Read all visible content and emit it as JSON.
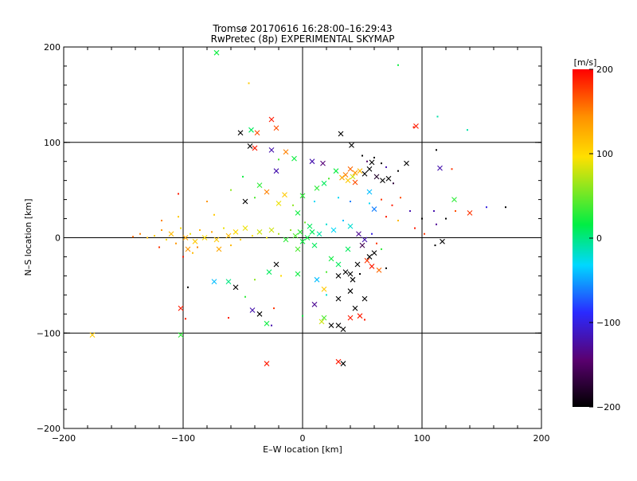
{
  "chart_data": {
    "type": "scatter",
    "title": "Tromsø 20170616 16:28:00–16:29:43",
    "subtitle": "RwPretec (8p) EXPERIMENTAL SKYMAP",
    "xlabel": "E–W location [km]",
    "ylabel": "N–S location [km]",
    "xlim": [
      -200,
      200
    ],
    "ylim": [
      -200,
      200
    ],
    "xticks": [
      -200,
      -100,
      0,
      100,
      200
    ],
    "yticks": [
      -200,
      -100,
      0,
      100,
      200
    ],
    "xtick_labels": [
      "−200",
      "−100",
      "0",
      "100",
      "200"
    ],
    "ytick_labels": [
      "−200",
      "−100",
      "0",
      "100",
      "200"
    ],
    "grid": true,
    "colorbar": {
      "label": "[m/s]",
      "range": [
        -200,
        200
      ],
      "ticks": [
        200,
        100,
        0,
        -100,
        -200
      ],
      "tick_labels": [
        "200",
        "100",
        "0",
        "−100",
        "−200"
      ],
      "colors": [
        "#000000",
        "#5a0070",
        "#2a2aff",
        "#00d8ff",
        "#00ee44",
        "#ffe000",
        "#ff9000",
        "#ff0000"
      ]
    },
    "markers": {
      "small": "dot",
      "large": "x"
    },
    "points": [
      {
        "x": -72,
        "y": 194,
        "v": 20,
        "m": "x"
      },
      {
        "x": -45,
        "y": 162,
        "v": 110,
        "m": "dot"
      },
      {
        "x": 80,
        "y": 181,
        "v": 20,
        "m": "dot"
      },
      {
        "x": 113,
        "y": 127,
        "v": -10,
        "m": "dot"
      },
      {
        "x": 138,
        "y": 113,
        "v": -10,
        "m": "dot"
      },
      {
        "x": -26,
        "y": 124,
        "v": 190,
        "m": "x"
      },
      {
        "x": -22,
        "y": 115,
        "v": 170,
        "m": "x"
      },
      {
        "x": -52,
        "y": 110,
        "v": -200,
        "m": "x"
      },
      {
        "x": -43,
        "y": 113,
        "v": 10,
        "m": "x"
      },
      {
        "x": -38,
        "y": 110,
        "v": 170,
        "m": "x"
      },
      {
        "x": 32,
        "y": 109,
        "v": -200,
        "m": "x"
      },
      {
        "x": 95,
        "y": 117,
        "v": 190,
        "m": "x"
      },
      {
        "x": 93,
        "y": 116,
        "v": 190,
        "m": "dot"
      },
      {
        "x": -44,
        "y": 96,
        "v": -200,
        "m": "x"
      },
      {
        "x": -40,
        "y": 94,
        "v": 190,
        "m": "x"
      },
      {
        "x": -26,
        "y": 92,
        "v": -120,
        "m": "x"
      },
      {
        "x": -14,
        "y": 90,
        "v": 150,
        "m": "x"
      },
      {
        "x": 41,
        "y": 97,
        "v": -200,
        "m": "x"
      },
      {
        "x": 112,
        "y": 92,
        "v": -200,
        "m": "dot"
      },
      {
        "x": -7,
        "y": 83,
        "v": 20,
        "m": "x"
      },
      {
        "x": 8,
        "y": 80,
        "v": -120,
        "m": "x"
      },
      {
        "x": 17,
        "y": 78,
        "v": -140,
        "m": "x"
      },
      {
        "x": 58,
        "y": 79,
        "v": -200,
        "m": "x"
      },
      {
        "x": 87,
        "y": 78,
        "v": -200,
        "m": "x"
      },
      {
        "x": -22,
        "y": 70,
        "v": -120,
        "m": "x"
      },
      {
        "x": -20,
        "y": 82,
        "v": 40,
        "m": "dot"
      },
      {
        "x": 115,
        "y": 73,
        "v": -120,
        "m": "x"
      },
      {
        "x": 125,
        "y": 72,
        "v": 180,
        "m": "dot"
      },
      {
        "x": 40,
        "y": 72,
        "v": 160,
        "m": "x"
      },
      {
        "x": 44,
        "y": 68,
        "v": 140,
        "m": "x"
      },
      {
        "x": 36,
        "y": 66,
        "v": 150,
        "m": "x"
      },
      {
        "x": 48,
        "y": 70,
        "v": 120,
        "m": "x"
      },
      {
        "x": 38,
        "y": 60,
        "v": 110,
        "m": "x"
      },
      {
        "x": 33,
        "y": 63,
        "v": 130,
        "m": "x"
      },
      {
        "x": 44,
        "y": 58,
        "v": 170,
        "m": "x"
      },
      {
        "x": 42,
        "y": 64,
        "v": 80,
        "m": "x"
      },
      {
        "x": 52,
        "y": 67,
        "v": -200,
        "m": "x"
      },
      {
        "x": 56,
        "y": 72,
        "v": -200,
        "m": "x"
      },
      {
        "x": 62,
        "y": 64,
        "v": -180,
        "m": "x"
      },
      {
        "x": 67,
        "y": 60,
        "v": -200,
        "m": "x"
      },
      {
        "x": 72,
        "y": 62,
        "v": -200,
        "m": "x"
      },
      {
        "x": 76,
        "y": 57,
        "v": -170,
        "m": "dot"
      },
      {
        "x": 50,
        "y": 86,
        "v": -200,
        "m": "dot"
      },
      {
        "x": 54,
        "y": 80,
        "v": -150,
        "m": "dot"
      },
      {
        "x": 60,
        "y": 84,
        "v": -200,
        "m": "dot"
      },
      {
        "x": 66,
        "y": 78,
        "v": -200,
        "m": "dot"
      },
      {
        "x": 70,
        "y": 74,
        "v": -120,
        "m": "dot"
      },
      {
        "x": 80,
        "y": 70,
        "v": -200,
        "m": "dot"
      },
      {
        "x": 28,
        "y": 70,
        "v": 20,
        "m": "x"
      },
      {
        "x": 22,
        "y": 62,
        "v": 40,
        "m": "dot"
      },
      {
        "x": 18,
        "y": 57,
        "v": 10,
        "m": "x"
      },
      {
        "x": 12,
        "y": 52,
        "v": 30,
        "m": "x"
      },
      {
        "x": -50,
        "y": 64,
        "v": 20,
        "m": "dot"
      },
      {
        "x": -36,
        "y": 55,
        "v": 30,
        "m": "x"
      },
      {
        "x": -30,
        "y": 48,
        "v": 150,
        "m": "x"
      },
      {
        "x": -40,
        "y": 42,
        "v": 40,
        "m": "dot"
      },
      {
        "x": -60,
        "y": 50,
        "v": 60,
        "m": "dot"
      },
      {
        "x": -15,
        "y": 45,
        "v": 110,
        "m": "x"
      },
      {
        "x": 0,
        "y": 44,
        "v": 30,
        "m": "x"
      },
      {
        "x": -48,
        "y": 38,
        "v": -200,
        "m": "x"
      },
      {
        "x": -20,
        "y": 36,
        "v": 90,
        "m": "x"
      },
      {
        "x": -8,
        "y": 34,
        "v": 60,
        "m": "dot"
      },
      {
        "x": 30,
        "y": 42,
        "v": -30,
        "m": "dot"
      },
      {
        "x": 56,
        "y": 36,
        "v": -30,
        "m": "dot"
      },
      {
        "x": 60,
        "y": 30,
        "v": -60,
        "m": "x"
      },
      {
        "x": 66,
        "y": 40,
        "v": 180,
        "m": "dot"
      },
      {
        "x": 75,
        "y": 34,
        "v": 190,
        "m": "dot"
      },
      {
        "x": 82,
        "y": 42,
        "v": 170,
        "m": "dot"
      },
      {
        "x": 90,
        "y": 28,
        "v": -120,
        "m": "dot"
      },
      {
        "x": 127,
        "y": 40,
        "v": 30,
        "m": "x"
      },
      {
        "x": 128,
        "y": 28,
        "v": 170,
        "m": "dot"
      },
      {
        "x": 140,
        "y": 26,
        "v": 180,
        "m": "x"
      },
      {
        "x": 154,
        "y": 32,
        "v": -100,
        "m": "dot"
      },
      {
        "x": 170,
        "y": 32,
        "v": -200,
        "m": "dot"
      },
      {
        "x": 110,
        "y": 28,
        "v": -120,
        "m": "dot"
      },
      {
        "x": 120,
        "y": 20,
        "v": -200,
        "m": "dot"
      },
      {
        "x": 112,
        "y": 14,
        "v": -130,
        "m": "dot"
      },
      {
        "x": 100,
        "y": 20,
        "v": -200,
        "m": "dot"
      },
      {
        "x": 94,
        "y": 10,
        "v": 190,
        "m": "dot"
      },
      {
        "x": 80,
        "y": 18,
        "v": 120,
        "m": "dot"
      },
      {
        "x": 70,
        "y": 22,
        "v": 190,
        "m": "dot"
      },
      {
        "x": 102,
        "y": 4,
        "v": 180,
        "m": "dot"
      },
      {
        "x": 117,
        "y": -4,
        "v": -200,
        "m": "x"
      },
      {
        "x": 111,
        "y": -8,
        "v": -200,
        "m": "dot"
      },
      {
        "x": 47,
        "y": 4,
        "v": -130,
        "m": "x"
      },
      {
        "x": 52,
        "y": -2,
        "v": -120,
        "m": "x"
      },
      {
        "x": 50,
        "y": -8,
        "v": -160,
        "m": "x"
      },
      {
        "x": 58,
        "y": 4,
        "v": -100,
        "m": "dot"
      },
      {
        "x": 62,
        "y": -6,
        "v": 180,
        "m": "dot"
      },
      {
        "x": 40,
        "y": 12,
        "v": -20,
        "m": "x"
      },
      {
        "x": 34,
        "y": 18,
        "v": -40,
        "m": "dot"
      },
      {
        "x": 26,
        "y": 8,
        "v": -30,
        "m": "x"
      },
      {
        "x": 20,
        "y": 14,
        "v": -20,
        "m": "dot"
      },
      {
        "x": 14,
        "y": 4,
        "v": -10,
        "m": "x"
      },
      {
        "x": 8,
        "y": 6,
        "v": 10,
        "m": "x"
      },
      {
        "x": 4,
        "y": 0,
        "v": 20,
        "m": "x"
      },
      {
        "x": -2,
        "y": 6,
        "v": 30,
        "m": "x"
      },
      {
        "x": 0,
        "y": -4,
        "v": 20,
        "m": "x"
      },
      {
        "x": -6,
        "y": 2,
        "v": 40,
        "m": "x"
      },
      {
        "x": -10,
        "y": 8,
        "v": 60,
        "m": "dot"
      },
      {
        "x": -14,
        "y": -2,
        "v": 30,
        "m": "x"
      },
      {
        "x": 6,
        "y": 12,
        "v": 10,
        "m": "x"
      },
      {
        "x": 2,
        "y": 16,
        "v": 50,
        "m": "dot"
      },
      {
        "x": 10,
        "y": -8,
        "v": 10,
        "m": "x"
      },
      {
        "x": -4,
        "y": -12,
        "v": 40,
        "m": "x"
      },
      {
        "x": -20,
        "y": 4,
        "v": 70,
        "m": "dot"
      },
      {
        "x": -26,
        "y": 8,
        "v": 80,
        "m": "x"
      },
      {
        "x": -30,
        "y": 0,
        "v": 90,
        "m": "dot"
      },
      {
        "x": -36,
        "y": 6,
        "v": 80,
        "m": "x"
      },
      {
        "x": -42,
        "y": 2,
        "v": 100,
        "m": "dot"
      },
      {
        "x": -48,
        "y": 10,
        "v": 90,
        "m": "x"
      },
      {
        "x": -52,
        "y": -2,
        "v": 110,
        "m": "dot"
      },
      {
        "x": -56,
        "y": 6,
        "v": 100,
        "m": "x"
      },
      {
        "x": -62,
        "y": 2,
        "v": 120,
        "m": "x"
      },
      {
        "x": -66,
        "y": 10,
        "v": 90,
        "m": "dot"
      },
      {
        "x": -72,
        "y": -2,
        "v": 110,
        "m": "x"
      },
      {
        "x": -76,
        "y": 6,
        "v": 130,
        "m": "dot"
      },
      {
        "x": -82,
        "y": 0,
        "v": 100,
        "m": "x"
      },
      {
        "x": -86,
        "y": 8,
        "v": 120,
        "m": "dot"
      },
      {
        "x": -90,
        "y": -4,
        "v": 110,
        "m": "x"
      },
      {
        "x": -94,
        "y": 4,
        "v": 90,
        "m": "dot"
      },
      {
        "x": -98,
        "y": 0,
        "v": 130,
        "m": "x"
      },
      {
        "x": -102,
        "y": 10,
        "v": 100,
        "m": "dot"
      },
      {
        "x": -106,
        "y": -6,
        "v": 140,
        "m": "dot"
      },
      {
        "x": -110,
        "y": 4,
        "v": 120,
        "m": "x"
      },
      {
        "x": -114,
        "y": -2,
        "v": 100,
        "m": "dot"
      },
      {
        "x": -118,
        "y": 8,
        "v": 140,
        "m": "dot"
      },
      {
        "x": -124,
        "y": 2,
        "v": 110,
        "m": "dot"
      },
      {
        "x": -130,
        "y": 0,
        "v": 120,
        "m": "dot"
      },
      {
        "x": -136,
        "y": 4,
        "v": 150,
        "m": "dot"
      },
      {
        "x": -142,
        "y": 1,
        "v": 160,
        "m": "dot"
      },
      {
        "x": -118,
        "y": 18,
        "v": 150,
        "m": "dot"
      },
      {
        "x": -104,
        "y": 22,
        "v": 110,
        "m": "dot"
      },
      {
        "x": -96,
        "y": -12,
        "v": 140,
        "m": "x"
      },
      {
        "x": -88,
        "y": -10,
        "v": 150,
        "m": "dot"
      },
      {
        "x": -100,
        "y": -20,
        "v": 190,
        "m": "dot"
      },
      {
        "x": -92,
        "y": -16,
        "v": 120,
        "m": "dot"
      },
      {
        "x": -70,
        "y": -12,
        "v": 130,
        "m": "x"
      },
      {
        "x": -60,
        "y": -8,
        "v": 120,
        "m": "dot"
      },
      {
        "x": -120,
        "y": -10,
        "v": 180,
        "m": "dot"
      },
      {
        "x": -104,
        "y": 46,
        "v": 190,
        "m": "dot"
      },
      {
        "x": -80,
        "y": 38,
        "v": 140,
        "m": "dot"
      },
      {
        "x": -74,
        "y": 24,
        "v": 110,
        "m": "dot"
      },
      {
        "x": 24,
        "y": -22,
        "v": 20,
        "m": "x"
      },
      {
        "x": 30,
        "y": -28,
        "v": 10,
        "m": "x"
      },
      {
        "x": 20,
        "y": -36,
        "v": 40,
        "m": "dot"
      },
      {
        "x": 12,
        "y": -44,
        "v": -40,
        "m": "x"
      },
      {
        "x": 18,
        "y": -54,
        "v": 110,
        "m": "x"
      },
      {
        "x": -4,
        "y": -38,
        "v": 20,
        "m": "x"
      },
      {
        "x": -22,
        "y": -28,
        "v": -200,
        "m": "x"
      },
      {
        "x": -18,
        "y": -40,
        "v": 100,
        "m": "dot"
      },
      {
        "x": -28,
        "y": -36,
        "v": 10,
        "m": "x"
      },
      {
        "x": -40,
        "y": -44,
        "v": 60,
        "m": "dot"
      },
      {
        "x": -62,
        "y": -46,
        "v": 0,
        "m": "x"
      },
      {
        "x": -74,
        "y": -46,
        "v": -40,
        "m": "x"
      },
      {
        "x": -96,
        "y": -52,
        "v": -200,
        "m": "dot"
      },
      {
        "x": -56,
        "y": -52,
        "v": -200,
        "m": "x"
      },
      {
        "x": -48,
        "y": -62,
        "v": 30,
        "m": "dot"
      },
      {
        "x": -42,
        "y": -76,
        "v": -120,
        "m": "x"
      },
      {
        "x": -36,
        "y": -80,
        "v": -200,
        "m": "x"
      },
      {
        "x": -24,
        "y": -74,
        "v": 180,
        "m": "dot"
      },
      {
        "x": -102,
        "y": -74,
        "v": 190,
        "m": "x"
      },
      {
        "x": -30,
        "y": -90,
        "v": 20,
        "m": "x"
      },
      {
        "x": -26,
        "y": -92,
        "v": -120,
        "m": "dot"
      },
      {
        "x": 0,
        "y": -82,
        "v": 20,
        "m": "dot"
      },
      {
        "x": 10,
        "y": -70,
        "v": -130,
        "m": "x"
      },
      {
        "x": 18,
        "y": -84,
        "v": 40,
        "m": "x"
      },
      {
        "x": 16,
        "y": -88,
        "v": 80,
        "m": "x"
      },
      {
        "x": 24,
        "y": -92,
        "v": -200,
        "m": "x"
      },
      {
        "x": 30,
        "y": -92,
        "v": -200,
        "m": "x"
      },
      {
        "x": 34,
        "y": -96,
        "v": -200,
        "m": "x"
      },
      {
        "x": 40,
        "y": -84,
        "v": 190,
        "m": "x"
      },
      {
        "x": 48,
        "y": -82,
        "v": 190,
        "m": "x"
      },
      {
        "x": 52,
        "y": -86,
        "v": 190,
        "m": "dot"
      },
      {
        "x": 44,
        "y": -74,
        "v": -200,
        "m": "x"
      },
      {
        "x": 52,
        "y": -64,
        "v": -200,
        "m": "x"
      },
      {
        "x": 30,
        "y": -64,
        "v": -200,
        "m": "x"
      },
      {
        "x": 20,
        "y": -60,
        "v": -20,
        "m": "dot"
      },
      {
        "x": 40,
        "y": -56,
        "v": -200,
        "m": "x"
      },
      {
        "x": 42,
        "y": -44,
        "v": -200,
        "m": "x"
      },
      {
        "x": 40,
        "y": -38,
        "v": -200,
        "m": "x"
      },
      {
        "x": 36,
        "y": -36,
        "v": -200,
        "m": "x"
      },
      {
        "x": 46,
        "y": -28,
        "v": -200,
        "m": "x"
      },
      {
        "x": 54,
        "y": -24,
        "v": 180,
        "m": "x"
      },
      {
        "x": 58,
        "y": -30,
        "v": 190,
        "m": "x"
      },
      {
        "x": 56,
        "y": -20,
        "v": -200,
        "m": "x"
      },
      {
        "x": 64,
        "y": -34,
        "v": 160,
        "m": "x"
      },
      {
        "x": 70,
        "y": -32,
        "v": -200,
        "m": "dot"
      },
      {
        "x": 60,
        "y": -16,
        "v": -200,
        "m": "x"
      },
      {
        "x": 48,
        "y": -38,
        "v": -200,
        "m": "dot"
      },
      {
        "x": 30,
        "y": -40,
        "v": -200,
        "m": "x"
      },
      {
        "x": 38,
        "y": -12,
        "v": 10,
        "m": "x"
      },
      {
        "x": 66,
        "y": -12,
        "v": 30,
        "m": "dot"
      },
      {
        "x": 40,
        "y": 38,
        "v": -60,
        "m": "dot"
      },
      {
        "x": 56,
        "y": 48,
        "v": -40,
        "m": "x"
      },
      {
        "x": 10,
        "y": 38,
        "v": -30,
        "m": "dot"
      },
      {
        "x": -4,
        "y": 26,
        "v": 20,
        "m": "x"
      },
      {
        "x": -176,
        "y": -102,
        "v": 110,
        "m": "x"
      },
      {
        "x": -102,
        "y": -102,
        "v": 30,
        "m": "x"
      },
      {
        "x": -30,
        "y": -132,
        "v": 190,
        "m": "x"
      },
      {
        "x": 30,
        "y": -130,
        "v": 190,
        "m": "x"
      },
      {
        "x": 34,
        "y": -132,
        "v": -200,
        "m": "x"
      },
      {
        "x": -98,
        "y": -85,
        "v": 190,
        "m": "dot"
      },
      {
        "x": -62,
        "y": -84,
        "v": 190,
        "m": "dot"
      }
    ]
  }
}
